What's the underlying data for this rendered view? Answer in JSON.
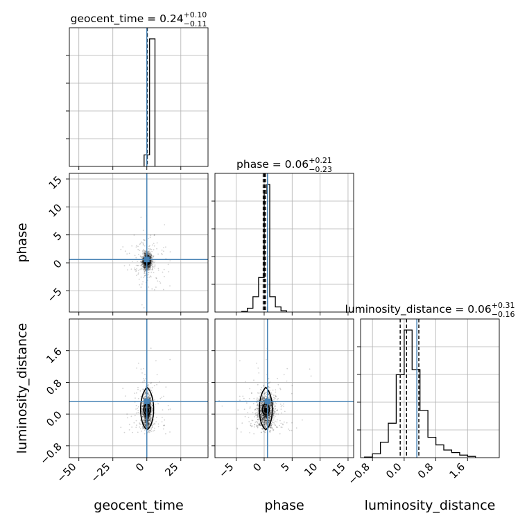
{
  "chart_data": {
    "type": "corner",
    "parameters": [
      "geocent_time",
      "phase",
      "luminosity_distance"
    ],
    "truths": {
      "geocent_time": 0.0,
      "phase": 0.6,
      "luminosity_distance": 0.32
    },
    "truth_color": "#4682b4",
    "line_color": "#000000",
    "grid": true,
    "ranges": {
      "geocent_time": [
        -57,
        45
      ],
      "phase": [
        -8.8,
        16
      ],
      "luminosity_distance": [
        -1.1,
        2.4
      ]
    },
    "ticks": {
      "geocent_time": [
        -50,
        -25,
        0,
        25
      ],
      "phase": [
        -5,
        0,
        5,
        10,
        15
      ],
      "luminosity_distance": [
        -0.8,
        0.0,
        0.8,
        1.6
      ]
    },
    "tick_labels": {
      "geocent_time": [
        "−50",
        "−25",
        "0",
        "25"
      ],
      "phase": [
        "−5",
        "0",
        "5",
        "10",
        "15"
      ],
      "luminosity_distance": [
        "−0.8",
        "0.0",
        "0.8",
        "1.6"
      ]
    },
    "diagonal_titles": [
      {
        "param": "geocent_time",
        "prefix": "geocent_time = 0.24",
        "sup": "+0.10",
        "sub": "−0.11"
      },
      {
        "param": "phase",
        "prefix": "phase = 0.06",
        "sup": "+0.21",
        "sub": "−0.23"
      },
      {
        "param": "luminosity_distance",
        "prefix": "luminosity_distance = 0.06",
        "sup": "+0.31",
        "sub": "−0.16"
      }
    ],
    "quantiles": {
      "geocent_time": [
        0.13,
        0.24,
        0.34
      ],
      "phase": [
        -0.17,
        0.06,
        0.27
      ],
      "luminosity_distance": [
        -0.1,
        0.06,
        0.37
      ]
    },
    "histograms": {
      "geocent_time": {
        "edges": [
          -2,
          2,
          6
        ],
        "counts": [
          0.09,
          1.0
        ]
      },
      "phase": {
        "edges": [
          -4.0,
          -3.0,
          -2.0,
          -1.0,
          0.0,
          0.5,
          1.0,
          2.0,
          3.0,
          4.0
        ],
        "counts": [
          0.005,
          0.03,
          0.12,
          0.27,
          0.93,
          1.0,
          0.12,
          0.04,
          0.01
        ]
      },
      "luminosity_distance": {
        "edges": [
          -1.0,
          -0.8,
          -0.6,
          -0.4,
          -0.2,
          0.0,
          0.2,
          0.4,
          0.6,
          0.8,
          1.0,
          1.2,
          1.4,
          1.6,
          1.8
        ],
        "counts": [
          0.005,
          0.03,
          0.12,
          0.27,
          0.65,
          1.0,
          0.69,
          0.37,
          0.16,
          0.1,
          0.06,
          0.04,
          0.02,
          0.01
        ]
      }
    },
    "samples": {
      "geocent_time": {
        "center": 0.2,
        "spread": 1.6,
        "outlier_spread": 7
      },
      "phase": {
        "center": 0.3,
        "spread": 0.7,
        "outlier_spread": 2.6
      },
      "luminosity_distance": {
        "center": 0.08,
        "spread": 0.22,
        "outlier_spread": 0.55
      }
    }
  }
}
